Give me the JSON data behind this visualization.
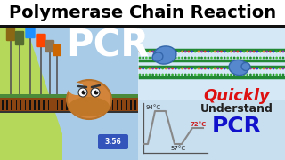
{
  "title": "Polymerase Chain Reaction",
  "title_fontsize": 14,
  "title_color": "#000000",
  "left_bg_top": "#d4e8c2",
  "left_bg_bottom": "#b8d88a",
  "left_panel_bg": "#c8dff0",
  "right_panel_bg": "#d8e8f8",
  "pcr_text": "PCR",
  "pcr_color": "#ffffff",
  "pcr_fontsize": 30,
  "quickly_text": "Quickly",
  "quickly_color": "#dd1111",
  "understand_text": "Understand",
  "understand_color": "#222222",
  "pcr_bottom_text": "PCR",
  "pcr_bottom_color": "#1111cc",
  "temp_94": "94°C",
  "temp_72": "72°C",
  "temp_57": "57°C",
  "temp_72_color": "#cc2222",
  "temp_label_color": "#222222",
  "timecode": "3:56",
  "timecode_color": "#ffffff",
  "timecode_bg": "#3355bb",
  "flag_colors": [
    "#8B4513",
    "#556B2F",
    "#1E90FF",
    "#FF4500",
    "#8B7355",
    "#cc6600"
  ],
  "dna_brown": "#8B4513",
  "dna_dark": "#2a2a2a",
  "dna_green": "#4a8a3a",
  "strand_colors_top": [
    "#dd3333",
    "#3333dd",
    "#33aa33",
    "#dd3333",
    "#3333dd"
  ],
  "poly_blob_color": "#5588cc",
  "poly_blob_edge": "#3366aa"
}
